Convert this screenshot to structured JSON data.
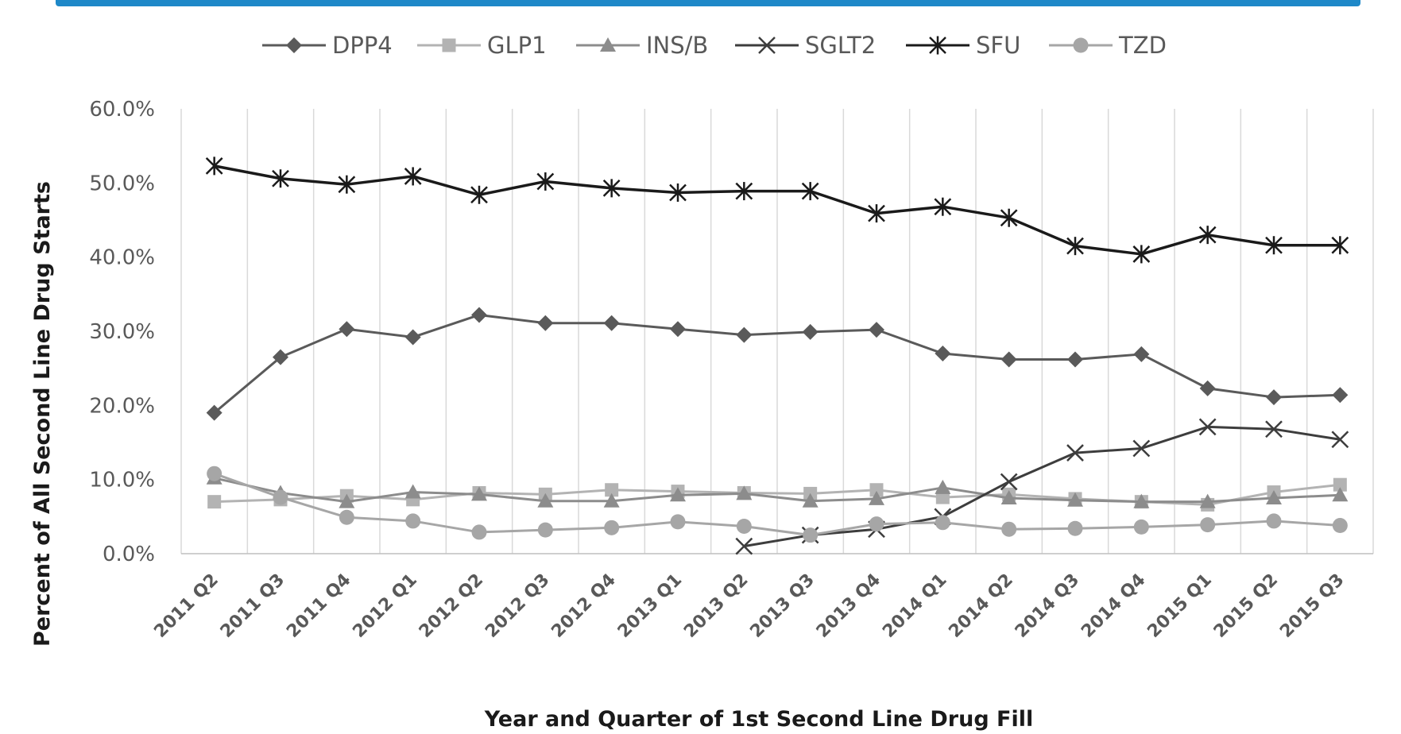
{
  "chart_data": {
    "type": "line",
    "title": "",
    "xlabel": "Year and Quarter of 1st Second Line Drug Fill",
    "ylabel": "Percent of All Second Line Drug Starts",
    "ylim": [
      0,
      60
    ],
    "y_ticks": [
      "0.0%",
      "10.0%",
      "20.0%",
      "30.0%",
      "40.0%",
      "50.0%",
      "60.0%"
    ],
    "grid": "vertical",
    "legend_position": "top",
    "categories": [
      "2011 Q2",
      "2011 Q3",
      "2011 Q4",
      "2012 Q1",
      "2012 Q2",
      "2012 Q3",
      "2012 Q4",
      "2013 Q1",
      "2013 Q2",
      "2013 Q3",
      "2013 Q4",
      "2014 Q1",
      "2014 Q2",
      "2014 Q3",
      "2014 Q4",
      "2015 Q1",
      "2015 Q2",
      "2015 Q3"
    ],
    "series": [
      {
        "name": "DPP4",
        "marker": "diamond",
        "color": "#5a5a5a",
        "values": [
          19.0,
          26.5,
          30.3,
          29.2,
          32.2,
          31.1,
          31.1,
          30.3,
          29.5,
          29.9,
          30.2,
          27.0,
          26.2,
          26.2,
          26.9,
          22.3,
          21.1,
          21.4
        ]
      },
      {
        "name": "GLP1",
        "marker": "square",
        "color": "#b3b3b3",
        "values": [
          7.0,
          7.3,
          7.8,
          7.3,
          8.2,
          8.0,
          8.6,
          8.4,
          8.2,
          8.1,
          8.6,
          7.6,
          8.0,
          7.4,
          7.0,
          6.6,
          8.3,
          9.3
        ]
      },
      {
        "name": "INS/B",
        "marker": "triangle",
        "color": "#8c8c8c",
        "values": [
          10.2,
          8.2,
          7.0,
          8.3,
          8.0,
          7.1,
          7.1,
          7.9,
          8.1,
          7.1,
          7.4,
          8.9,
          7.5,
          7.2,
          7.0,
          7.0,
          7.5,
          7.9
        ]
      },
      {
        "name": "SGLT2",
        "marker": "x",
        "color": "#3d3d3d",
        "values": [
          null,
          null,
          null,
          null,
          null,
          null,
          null,
          null,
          1.0,
          2.5,
          3.3,
          5.0,
          9.7,
          13.6,
          14.2,
          17.1,
          16.8,
          15.4
        ]
      },
      {
        "name": "SFU",
        "marker": "star",
        "color": "#1a1a1a",
        "values": [
          52.3,
          50.6,
          49.8,
          50.9,
          48.4,
          50.2,
          49.3,
          48.7,
          48.9,
          48.9,
          45.9,
          46.8,
          45.3,
          41.5,
          40.4,
          43.0,
          41.6,
          41.6
        ]
      },
      {
        "name": "TZD",
        "marker": "circle",
        "color": "#a6a6a6",
        "values": [
          10.8,
          7.6,
          4.9,
          4.4,
          2.9,
          3.2,
          3.5,
          4.3,
          3.7,
          2.5,
          4.0,
          4.2,
          3.3,
          3.4,
          3.6,
          3.9,
          4.4,
          3.8
        ]
      }
    ]
  }
}
